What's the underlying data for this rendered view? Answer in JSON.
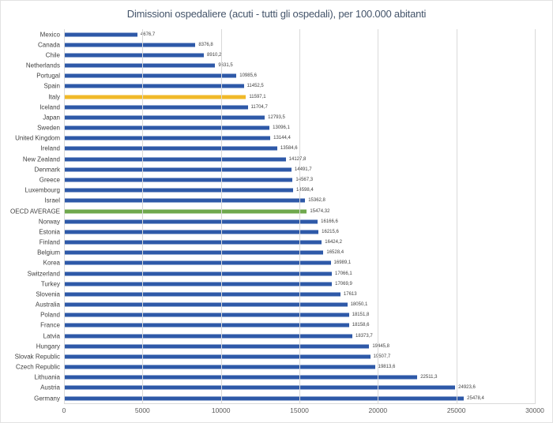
{
  "chart_data": {
    "type": "bar",
    "orientation": "horizontal",
    "title": "Dimissioni ospedaliere (acuti - tutti gli ospedali), per 100.000 abitanti",
    "xlabel": "",
    "ylabel": "",
    "xlim": [
      0,
      30000
    ],
    "x_ticks": [
      0,
      5000,
      10000,
      15000,
      20000,
      25000,
      30000
    ],
    "x_tick_labels": [
      "0",
      "5000",
      "10000",
      "15000",
      "20000",
      "25000",
      "30000"
    ],
    "grid": true,
    "legend": false,
    "data_labels": true,
    "colors": {
      "default": "#2e59a8",
      "highlight": "#f0b929",
      "average": "#6fa84d",
      "gridline": "#d9d9d9",
      "title_text": "#44546a",
      "axis_text": "#595959",
      "label_text": "#404040"
    },
    "series": [
      {
        "name": "Mexico",
        "value": 4676.7,
        "label": "4676,7",
        "role": "default"
      },
      {
        "name": "Canada",
        "value": 8376.8,
        "label": "8376,8",
        "role": "default"
      },
      {
        "name": "Chile",
        "value": 8910.2,
        "label": "8910,2",
        "role": "default"
      },
      {
        "name": "Netherlands",
        "value": 9631.5,
        "label": "9631,5",
        "role": "default"
      },
      {
        "name": "Portugal",
        "value": 10985.6,
        "label": "10985,6",
        "role": "default"
      },
      {
        "name": "Spain",
        "value": 11452.5,
        "label": "11452,5",
        "role": "default"
      },
      {
        "name": "Italy",
        "value": 11597.1,
        "label": "11597,1",
        "role": "highlight"
      },
      {
        "name": "Iceland",
        "value": 11704.7,
        "label": "11704,7",
        "role": "default"
      },
      {
        "name": "Japan",
        "value": 12793.5,
        "label": "12793,5",
        "role": "default"
      },
      {
        "name": "Sweden",
        "value": 13096.1,
        "label": "13096,1",
        "role": "default"
      },
      {
        "name": "United Kingdom",
        "value": 13144.4,
        "label": "13144,4",
        "role": "default"
      },
      {
        "name": "Ireland",
        "value": 13584.6,
        "label": "13584,6",
        "role": "default"
      },
      {
        "name": "New Zealand",
        "value": 14127.8,
        "label": "14127,8",
        "role": "default"
      },
      {
        "name": "Denmark",
        "value": 14491.7,
        "label": "14491,7",
        "role": "default"
      },
      {
        "name": "Greece",
        "value": 14567.3,
        "label": "14567,3",
        "role": "default"
      },
      {
        "name": "Luxembourg",
        "value": 14598.4,
        "label": "14598,4",
        "role": "default"
      },
      {
        "name": "Israel",
        "value": 15362.8,
        "label": "15362,8",
        "role": "default"
      },
      {
        "name": "OECD AVERAGE",
        "value": 15474.32,
        "label": "15474,32",
        "role": "average"
      },
      {
        "name": "Norway",
        "value": 16166.6,
        "label": "16166,6",
        "role": "default"
      },
      {
        "name": "Estonia",
        "value": 16215.6,
        "label": "16215,6",
        "role": "default"
      },
      {
        "name": "Finland",
        "value": 16424.2,
        "label": "16424,2",
        "role": "default"
      },
      {
        "name": "Belgium",
        "value": 16528.4,
        "label": "16528,4",
        "role": "default"
      },
      {
        "name": "Korea",
        "value": 16989.1,
        "label": "16989,1",
        "role": "default"
      },
      {
        "name": "Switzerland",
        "value": 17066.1,
        "label": "17066,1",
        "role": "default"
      },
      {
        "name": "Turkey",
        "value": 17069.9,
        "label": "17069,9",
        "role": "default"
      },
      {
        "name": "Slovenia",
        "value": 17613,
        "label": "17613",
        "role": "default"
      },
      {
        "name": "Australia",
        "value": 18050.1,
        "label": "18050,1",
        "role": "default"
      },
      {
        "name": "Poland",
        "value": 18151.8,
        "label": "18151,8",
        "role": "default"
      },
      {
        "name": "France",
        "value": 18158.6,
        "label": "18158,6",
        "role": "default"
      },
      {
        "name": "Latvia",
        "value": 18373.7,
        "label": "18373,7",
        "role": "default"
      },
      {
        "name": "Hungary",
        "value": 19445.8,
        "label": "19445,8",
        "role": "default"
      },
      {
        "name": "Slovak Republic",
        "value": 19507.7,
        "label": "19507,7",
        "role": "default"
      },
      {
        "name": "Czech Republic",
        "value": 19813.6,
        "label": "19813,6",
        "role": "default"
      },
      {
        "name": "Lithuania",
        "value": 22511.3,
        "label": "22511,3",
        "role": "default"
      },
      {
        "name": "Austria",
        "value": 24923.6,
        "label": "24923,6",
        "role": "default"
      },
      {
        "name": "Germany",
        "value": 25478.4,
        "label": "25478,4",
        "role": "default"
      }
    ]
  }
}
